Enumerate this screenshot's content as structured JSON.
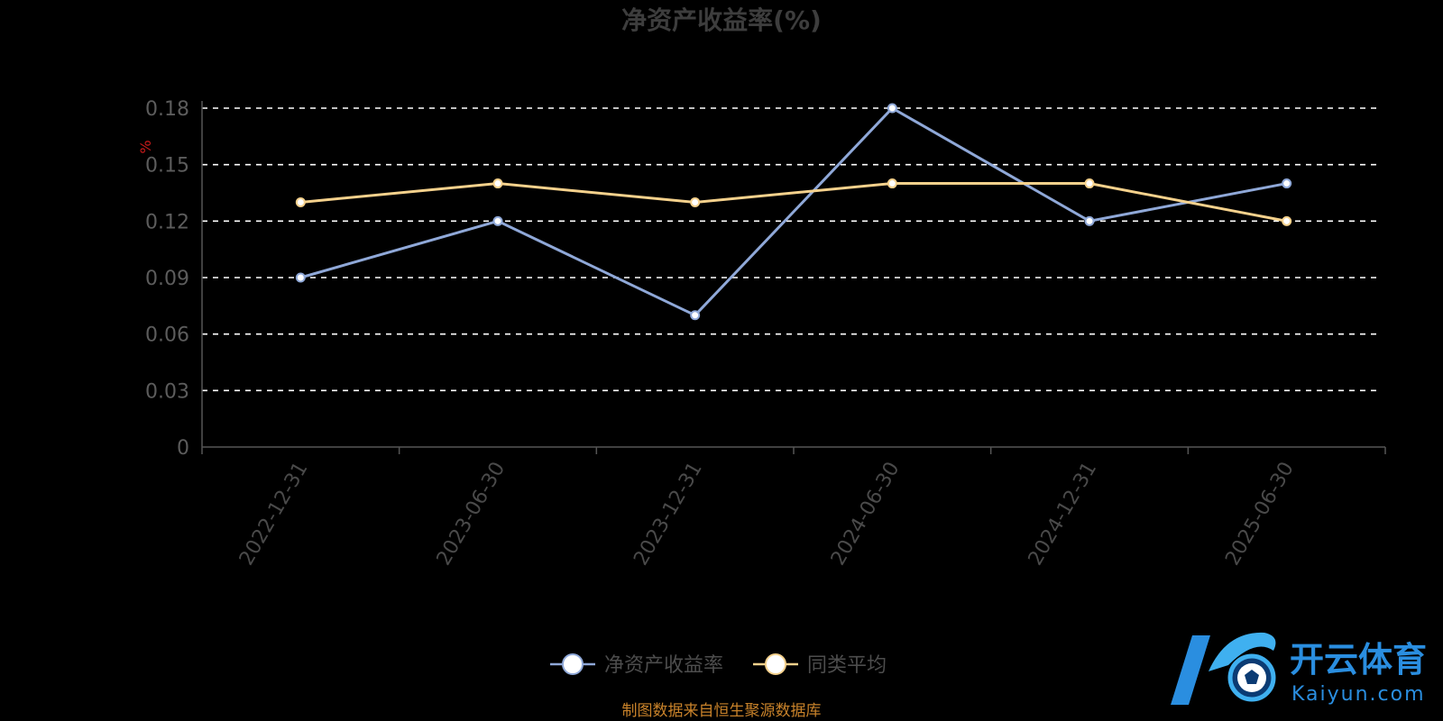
{
  "chart_data": {
    "type": "line",
    "title": "净资产收益率(%)",
    "ylabel": "%",
    "xlabel": "",
    "categories": [
      "2022-12-31",
      "2023-06-30",
      "2023-12-31",
      "2024-06-30",
      "2024-12-31",
      "2025-06-30"
    ],
    "series": [
      {
        "name": "净资产收益率",
        "values": [
          0.09,
          0.12,
          0.07,
          0.18,
          0.12,
          0.14
        ]
      },
      {
        "name": "同类平均",
        "values": [
          0.13,
          0.14,
          0.13,
          0.14,
          0.14,
          0.12
        ]
      }
    ],
    "yticks": [
      "0",
      "0.03",
      "0.06",
      "0.09",
      "0.12",
      "0.15",
      "0.18"
    ],
    "ylim": [
      0,
      0.18
    ],
    "grid": true,
    "legend_position": "bottom-center"
  },
  "colors": {
    "series": [
      "#8fa8d8",
      "#f5d18c"
    ],
    "grid": "#ffffff",
    "axis": "#555555"
  },
  "source_text": "制图数据来自恒生聚源数据库",
  "logo": {
    "name": "开云体育",
    "subtitle": "Kaiyun.com"
  }
}
